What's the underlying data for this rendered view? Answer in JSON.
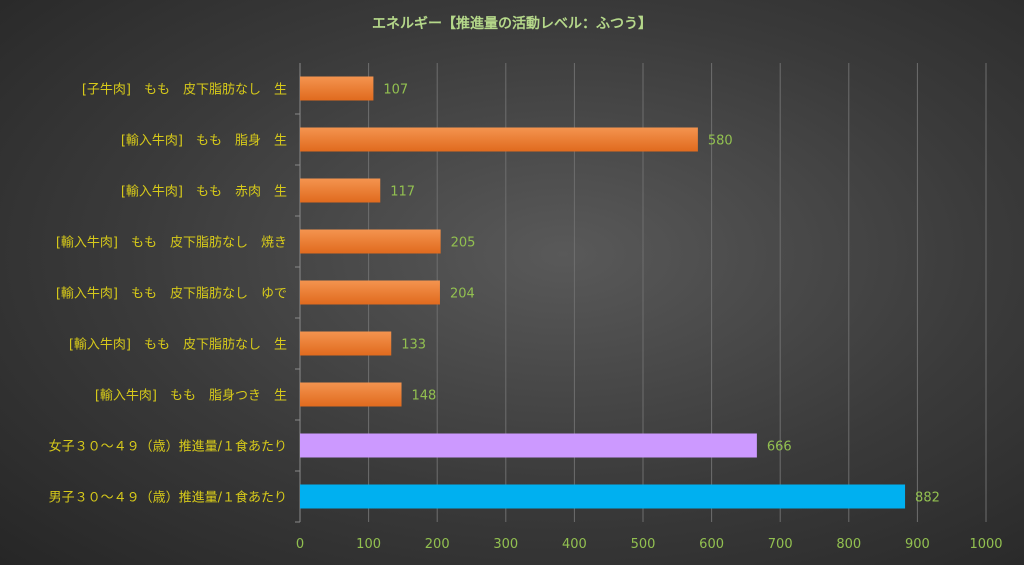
{
  "chart_data": {
    "type": "bar",
    "orientation": "horizontal",
    "title": "エネルギー【推進量の活動レベル：ふつう】",
    "categories": [
      "[子牛肉]　もも　皮下脂肪なし　生",
      "[輸入牛肉]　もも　脂身　生",
      "[輸入牛肉]　もも　赤肉　生",
      "[輸入牛肉]　もも　皮下脂肪なし　焼き",
      "[輸入牛肉]　もも　皮下脂肪なし　ゆで",
      "[輸入牛肉]　もも　皮下脂肪なし　生",
      "[輸入牛肉]　もも　脂身つき　生",
      "女子３０～４９（歳）推進量/１食あたり",
      "男子３０～４９（歳）推進量/１食あたり"
    ],
    "values": [
      107,
      580,
      117,
      205,
      204,
      133,
      148,
      666,
      882
    ],
    "bar_colors": [
      "#ED7D31",
      "#ED7D31",
      "#ED7D31",
      "#ED7D31",
      "#ED7D31",
      "#ED7D31",
      "#ED7D31",
      "#CC99FF",
      "#00B0F0"
    ],
    "xlim": [
      0,
      1000
    ],
    "xticks": [
      0,
      100,
      200,
      300,
      400,
      500,
      600,
      700,
      800,
      900,
      1000
    ],
    "grid": true,
    "data_labels": true,
    "title_color": "#B5D88A",
    "label_color": "#D6C91A",
    "value_color": "#92C050"
  }
}
